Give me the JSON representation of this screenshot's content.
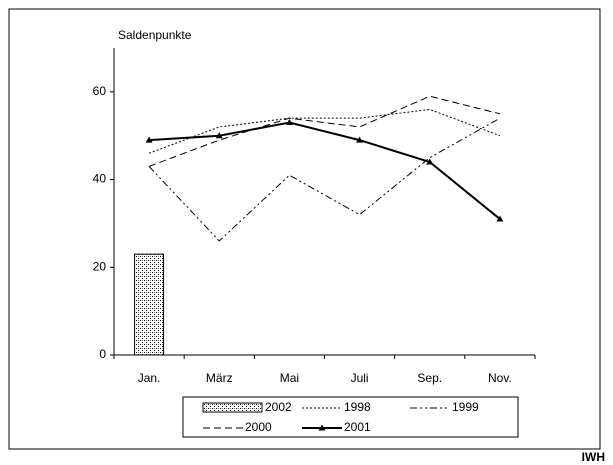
{
  "chart_data": {
    "type": "line",
    "y_label": "Saldenpunkte",
    "source": "IWH",
    "categories": [
      "Jan.",
      "März",
      "Mai",
      "Juli",
      "Sep.",
      "Nov."
    ],
    "ylim": [
      0,
      70
    ],
    "yticks": [
      0,
      20,
      40,
      60
    ],
    "grid": false,
    "legend": "bottom",
    "series": [
      {
        "name": "2002",
        "type": "bar",
        "color": "#000000",
        "style": "stippled",
        "values": [
          23,
          null,
          null,
          null,
          null,
          null
        ]
      },
      {
        "name": "1998",
        "type": "line",
        "color": "#000000",
        "style": "dotted",
        "values": [
          46,
          52,
          54,
          54,
          56,
          50
        ]
      },
      {
        "name": "1999",
        "type": "line",
        "color": "#000000",
        "style": "dashdot",
        "values": [
          43,
          26,
          41,
          32,
          45,
          54
        ]
      },
      {
        "name": "2000",
        "type": "line",
        "color": "#000000",
        "style": "dashed",
        "values": [
          43,
          49,
          54,
          52,
          59,
          55
        ]
      },
      {
        "name": "2001",
        "type": "line",
        "color": "#000000",
        "style": "solid-triangle",
        "values": [
          49,
          50,
          53,
          49,
          44,
          31
        ]
      }
    ]
  }
}
